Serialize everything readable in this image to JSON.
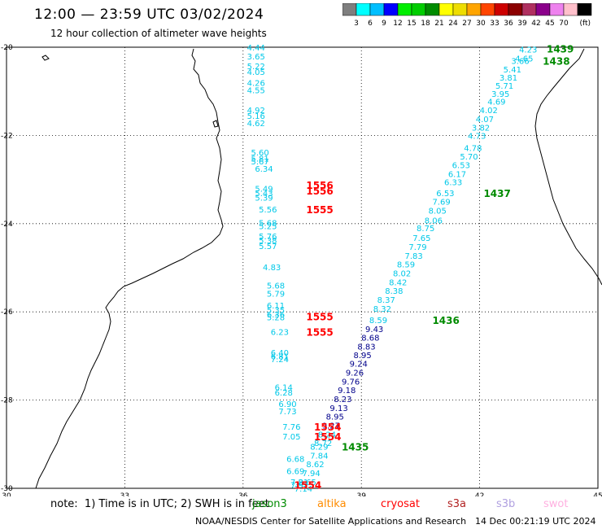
{
  "title": "12:00 — 23:59 UTC 03/02/2024",
  "subtitle": "12 hour collection of altimeter wave heights",
  "colorbar": {
    "unit": "(ft)",
    "ticks": [
      "3",
      "6",
      "9",
      "12",
      "15",
      "18",
      "21",
      "24",
      "27",
      "30",
      "33",
      "36",
      "39",
      "42",
      "45",
      "70"
    ],
    "colors": [
      "#7f7f7f",
      "#00ffff",
      "#00bfff",
      "#0000ff",
      "#00ee00",
      "#00cd00",
      "#008b00",
      "#ffff00",
      "#eedd00",
      "#ffa500",
      "#ff4500",
      "#cd0000",
      "#8b0000",
      "#b03060",
      "#8b008b",
      "#ee82ee",
      "#ffc0cb",
      "#000000"
    ]
  },
  "note": "note:  1) Time is in UTC; 2) SWH is in feet",
  "legend": [
    {
      "name": "jason3",
      "color": "#008b00"
    },
    {
      "name": "altika",
      "color": "#ff8c00"
    },
    {
      "name": "cryosat",
      "color": "#ff0000"
    },
    {
      "name": "s3a",
      "color": "#b22222"
    },
    {
      "name": "s3b",
      "color": "#b0a0e0"
    },
    {
      "name": "swot",
      "color": "#ffb0e0"
    }
  ],
  "credit": "NOAA/NESDIS Center for Satellite Applications and Research",
  "timestamp": "14 Dec 00:21:19 UTC 2024",
  "chart_data": {
    "type": "scatter",
    "title": "12:00 — 23:59 UTC 03/02/2024",
    "subtitle": "12 hour collection of altimeter wave heights",
    "xlabel": "",
    "ylabel": "",
    "xlim": [
      30,
      45
    ],
    "ylim": [
      -30,
      -20
    ],
    "x_ticks": [
      "30",
      "33",
      "36",
      "39",
      "42",
      "45"
    ],
    "y_ticks": [
      "-20",
      "-22",
      "-24",
      "-26",
      "-28",
      "-30"
    ],
    "grid": true,
    "series": [
      {
        "name": "cryosat",
        "color": "#00c8e8",
        "points": [
          {
            "lon": 36.1,
            "lat": -20.0,
            "swh": "4.44"
          },
          {
            "lon": 36.1,
            "lat": -20.2,
            "swh": "3.65"
          },
          {
            "lon": 36.1,
            "lat": -20.42,
            "swh": "5.22"
          },
          {
            "lon": 36.1,
            "lat": -20.55,
            "swh": "4.05"
          },
          {
            "lon": 36.1,
            "lat": -20.8,
            "swh": "4.26"
          },
          {
            "lon": 36.1,
            "lat": -20.97,
            "swh": "4.55"
          },
          {
            "lon": 36.1,
            "lat": -21.42,
            "swh": "4.92"
          },
          {
            "lon": 36.1,
            "lat": -21.55,
            "swh": "5.16"
          },
          {
            "lon": 36.1,
            "lat": -21.72,
            "swh": "4.62"
          },
          {
            "lon": 36.2,
            "lat": -22.38,
            "swh": "5.60"
          },
          {
            "lon": 36.2,
            "lat": -22.52,
            "swh": "5.81"
          },
          {
            "lon": 36.2,
            "lat": -22.58,
            "swh": "5.67"
          },
          {
            "lon": 36.3,
            "lat": -22.75,
            "swh": "6.34"
          },
          {
            "lon": 36.3,
            "lat": -23.2,
            "swh": "5.49"
          },
          {
            "lon": 36.3,
            "lat": -23.3,
            "swh": "5.43"
          },
          {
            "lon": 36.3,
            "lat": -23.4,
            "swh": "5.39"
          },
          {
            "lon": 36.4,
            "lat": -23.67,
            "swh": "5.56"
          },
          {
            "lon": 36.4,
            "lat": -23.98,
            "swh": "5.68"
          },
          {
            "lon": 36.4,
            "lat": -24.05,
            "swh": "5.25"
          },
          {
            "lon": 36.4,
            "lat": -24.28,
            "swh": "5.76"
          },
          {
            "lon": 36.4,
            "lat": -24.37,
            "swh": "5.38"
          },
          {
            "lon": 36.4,
            "lat": -24.5,
            "swh": "5.57"
          },
          {
            "lon": 36.5,
            "lat": -24.98,
            "swh": "4.83"
          },
          {
            "lon": 36.6,
            "lat": -25.4,
            "swh": "5.68"
          },
          {
            "lon": 36.6,
            "lat": -25.58,
            "swh": "5.79"
          },
          {
            "lon": 36.6,
            "lat": -25.85,
            "swh": "6.11"
          },
          {
            "lon": 36.6,
            "lat": -25.95,
            "swh": "5.35"
          },
          {
            "lon": 36.6,
            "lat": -26.05,
            "swh": "6.36"
          },
          {
            "lon": 36.6,
            "lat": -26.12,
            "swh": "5.28"
          },
          {
            "lon": 36.7,
            "lat": -26.45,
            "swh": "6.23"
          },
          {
            "lon": 36.7,
            "lat": -26.92,
            "swh": "6.40"
          },
          {
            "lon": 36.7,
            "lat": -27.0,
            "swh": "6.81"
          },
          {
            "lon": 36.7,
            "lat": -27.07,
            "swh": "7.24"
          },
          {
            "lon": 36.8,
            "lat": -27.7,
            "swh": "6.14"
          },
          {
            "lon": 36.8,
            "lat": -27.82,
            "swh": "6.28"
          },
          {
            "lon": 36.9,
            "lat": -28.08,
            "swh": "6.90"
          },
          {
            "lon": 36.9,
            "lat": -28.25,
            "swh": "7.73"
          },
          {
            "lon": 37.0,
            "lat": -28.6,
            "swh": "7.76"
          },
          {
            "lon": 37.0,
            "lat": -28.82,
            "swh": "7.05"
          },
          {
            "lon": 37.1,
            "lat": -29.33,
            "swh": "6.68"
          },
          {
            "lon": 37.1,
            "lat": -29.6,
            "swh": "6.69"
          },
          {
            "lon": 37.2,
            "lat": -29.85,
            "swh": "7.21"
          },
          {
            "lon": 37.2,
            "lat": -29.92,
            "swh": "7.97"
          }
        ]
      },
      {
        "name": "jason3",
        "color": "#00c8e8",
        "points": [
          {
            "lon": 43.0,
            "lat": -20.05,
            "swh": "4.23"
          },
          {
            "lon": 42.9,
            "lat": -20.25,
            "swh": "4.65"
          },
          {
            "lon": 42.8,
            "lat": -20.3,
            "swh": "3.66"
          },
          {
            "lon": 42.6,
            "lat": -20.5,
            "swh": "5.41"
          },
          {
            "lon": 42.5,
            "lat": -20.68,
            "swh": "3.81"
          },
          {
            "lon": 42.4,
            "lat": -20.87,
            "swh": "5.71"
          },
          {
            "lon": 42.3,
            "lat": -21.05,
            "swh": "3.95"
          },
          {
            "lon": 42.2,
            "lat": -21.23,
            "swh": "4.69"
          },
          {
            "lon": 42.0,
            "lat": -21.42,
            "swh": "4.02"
          },
          {
            "lon": 41.9,
            "lat": -21.62,
            "swh": "4.07"
          },
          {
            "lon": 41.8,
            "lat": -21.82,
            "swh": "3.82"
          },
          {
            "lon": 41.7,
            "lat": -22.0,
            "swh": "4.73"
          },
          {
            "lon": 41.6,
            "lat": -22.28,
            "swh": "4.78"
          },
          {
            "lon": 41.5,
            "lat": -22.47,
            "swh": "5.70"
          },
          {
            "lon": 41.3,
            "lat": -22.67,
            "swh": "6.53"
          },
          {
            "lon": 41.2,
            "lat": -22.87,
            "swh": "6.17"
          },
          {
            "lon": 41.1,
            "lat": -23.05,
            "swh": "6.33"
          },
          {
            "lon": 40.9,
            "lat": -23.3,
            "swh": "6.53"
          },
          {
            "lon": 40.8,
            "lat": -23.5,
            "swh": "7.69"
          },
          {
            "lon": 40.7,
            "lat": -23.7,
            "swh": "8.05"
          },
          {
            "lon": 40.6,
            "lat": -23.92,
            "swh": "8.06"
          },
          {
            "lon": 40.4,
            "lat": -24.1,
            "swh": "8.75"
          },
          {
            "lon": 40.3,
            "lat": -24.32,
            "swh": "7.65"
          },
          {
            "lon": 40.2,
            "lat": -24.52,
            "swh": "7.79"
          },
          {
            "lon": 40.1,
            "lat": -24.72,
            "swh": "7.83"
          },
          {
            "lon": 39.9,
            "lat": -24.92,
            "swh": "8.59"
          },
          {
            "lon": 39.8,
            "lat": -25.12,
            "swh": "8.02"
          },
          {
            "lon": 39.7,
            "lat": -25.32,
            "swh": "8.42"
          },
          {
            "lon": 39.6,
            "lat": -25.52,
            "swh": "8.38"
          },
          {
            "lon": 39.4,
            "lat": -25.72,
            "swh": "8.37"
          },
          {
            "lon": 39.3,
            "lat": -25.92,
            "swh": "8.32"
          },
          {
            "lon": 39.2,
            "lat": -26.18,
            "swh": "8.59"
          }
        ]
      },
      {
        "name": "jason3",
        "color": "#00008b",
        "points": [
          {
            "lon": 39.1,
            "lat": -26.38,
            "swh": "9.43"
          },
          {
            "lon": 39.0,
            "lat": -26.58,
            "swh": "8.68"
          },
          {
            "lon": 38.9,
            "lat": -26.78,
            "swh": "8.83"
          },
          {
            "lon": 38.8,
            "lat": -26.97,
            "swh": "8.95"
          },
          {
            "lon": 38.7,
            "lat": -27.17,
            "swh": "9.24"
          },
          {
            "lon": 38.6,
            "lat": -27.37,
            "swh": "9.26"
          },
          {
            "lon": 38.5,
            "lat": -27.57,
            "swh": "9.76"
          },
          {
            "lon": 38.4,
            "lat": -27.77,
            "swh": "9.18"
          },
          {
            "lon": 38.3,
            "lat": -27.97,
            "swh": "8.23"
          },
          {
            "lon": 38.2,
            "lat": -28.17,
            "swh": "9.13"
          },
          {
            "lon": 38.1,
            "lat": -28.37,
            "swh": "8.95"
          },
          {
            "lon": 38.0,
            "lat": -28.57,
            "swh": "9.27"
          }
        ]
      },
      {
        "name": "jason3",
        "color": "#00c8e8",
        "points": [
          {
            "lon": 37.9,
            "lat": -28.77,
            "swh": "8.24"
          },
          {
            "lon": 37.8,
            "lat": -28.97,
            "swh": "8.72"
          },
          {
            "lon": 37.7,
            "lat": -29.05,
            "swh": "8.29"
          },
          {
            "lon": 37.7,
            "lat": -29.25,
            "swh": "7.84"
          },
          {
            "lon": 37.6,
            "lat": -29.45,
            "swh": "8.62"
          },
          {
            "lon": 37.5,
            "lat": -29.65,
            "swh": "7.94"
          },
          {
            "lon": 37.4,
            "lat": -29.85,
            "swh": "8.65"
          },
          {
            "lon": 37.3,
            "lat": -30.0,
            "swh": "7.14"
          }
        ]
      }
    ],
    "time_labels": [
      {
        "lon": 43.7,
        "lat": -20.03,
        "text": "1439",
        "color": "#008b00"
      },
      {
        "lon": 43.6,
        "lat": -20.3,
        "text": "1438",
        "color": "#008b00"
      },
      {
        "lon": 42.1,
        "lat": -23.3,
        "text": "1437",
        "color": "#008b00"
      },
      {
        "lon": 40.8,
        "lat": -26.18,
        "text": "1436",
        "color": "#008b00"
      },
      {
        "lon": 38.5,
        "lat": -29.05,
        "text": "1435",
        "color": "#008b00"
      },
      {
        "lon": 37.6,
        "lat": -23.12,
        "text": "1556",
        "color": "#ff0000"
      },
      {
        "lon": 37.6,
        "lat": -23.25,
        "text": "1556",
        "color": "#ff0000"
      },
      {
        "lon": 37.6,
        "lat": -23.67,
        "text": "1555",
        "color": "#ff0000"
      },
      {
        "lon": 37.6,
        "lat": -26.1,
        "text": "1555",
        "color": "#ff0000"
      },
      {
        "lon": 37.6,
        "lat": -26.45,
        "text": "1555",
        "color": "#ff0000"
      },
      {
        "lon": 37.8,
        "lat": -28.6,
        "text": "1554",
        "color": "#ff0000"
      },
      {
        "lon": 37.8,
        "lat": -28.82,
        "text": "1554",
        "color": "#ff0000"
      },
      {
        "lon": 37.3,
        "lat": -29.92,
        "text": "1554",
        "color": "#ff0000"
      }
    ]
  }
}
